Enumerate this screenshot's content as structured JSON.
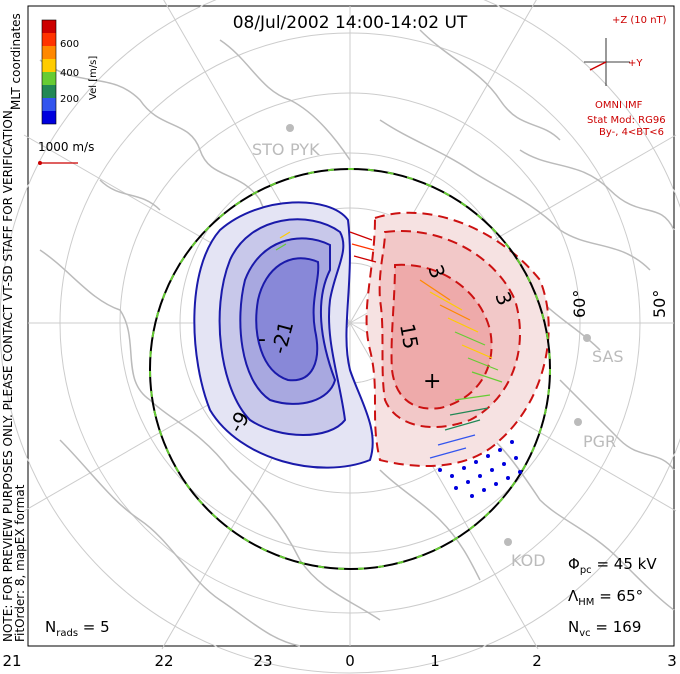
{
  "title": "08/Jul/2002 14:00-14:02 UT",
  "coordinates_label": "MLT coordinates",
  "side_note_1": "NOTE: FOR PREVIEW PURPOSES ONLY. PLEASE CONTACT VT-SD STAFF FOR VERIFICATION.",
  "side_note_2": "FitOrder: 8, mapEX format",
  "colorbar": {
    "unit_label": "Vel [m/s]",
    "ticks": [
      "600",
      "400",
      "200"
    ],
    "colors": [
      "#0000dd",
      "#3355ee",
      "#228855",
      "#66cc33",
      "#ffcc00",
      "#ff8800",
      "#ff3300",
      "#cc0000"
    ]
  },
  "velocity_scale": "1000 m/s",
  "imf": {
    "z_label": "+Z (10 nT)",
    "y_label": "+Y",
    "source": "OMNI IMF",
    "model_line1": "Stat Mod: RG96",
    "model_line2": "By-, 4<BT<6"
  },
  "stations": [
    "STO",
    "PYK",
    "SAS",
    "PGR",
    "KOD"
  ],
  "latitude_labels": [
    "60°",
    "50°"
  ],
  "contour_labels": [
    "-21",
    "-9",
    "15",
    "3",
    "3",
    "-",
    "+"
  ],
  "stats": {
    "phi_pc": "Φ",
    "phi_pc_sub": "pc",
    "phi_pc_value": " = 45 kV",
    "lambda_hm": "Λ",
    "lambda_hm_sub": "HM",
    "lambda_hm_value": " = 65°",
    "n_vc": "N",
    "n_vc_sub": "vc",
    "n_vc_value": " = 169",
    "n_rads": "N",
    "n_rads_sub": "rads",
    "n_rads_value": " = 5"
  },
  "mlt_axis": [
    "21",
    "22",
    "23",
    "0",
    "1",
    "2",
    "3"
  ],
  "colors": {
    "negative_cell": "#1a1aaa",
    "positive_cell": "#cc1111",
    "coastline": "#bbbbbb",
    "boundary": "#66cc33"
  }
}
